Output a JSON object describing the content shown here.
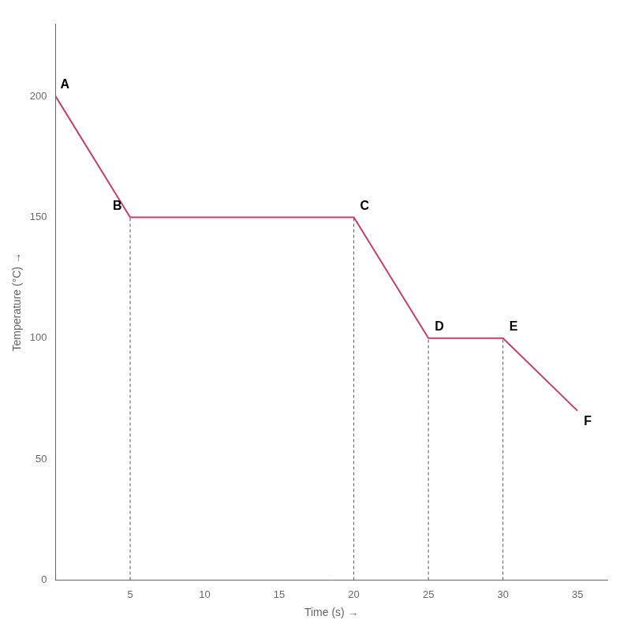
{
  "chart_data": {
    "type": "line",
    "x": [
      0,
      5,
      20,
      25,
      30,
      35
    ],
    "values": [
      200,
      150,
      150,
      100,
      100,
      70
    ],
    "point_labels": [
      "A",
      "B",
      "C",
      "D",
      "E",
      "F"
    ],
    "color": "#c0406a",
    "marker": "none",
    "drop_lines": {
      "x": [
        5,
        20,
        25,
        30
      ],
      "y": [
        150,
        150,
        100,
        100
      ],
      "color": "#555555",
      "line_style": "dashed"
    },
    "xlabel": "Time (s) →",
    "ylabel": "Temperature (°C) →",
    "xlim": [
      0,
      37
    ],
    "ylim": [
      0,
      230
    ],
    "xticks": [
      5,
      10,
      15,
      20,
      25,
      30,
      35
    ],
    "yticks": [
      0,
      50,
      100,
      150,
      200
    ],
    "grid": false,
    "legend": false
  }
}
